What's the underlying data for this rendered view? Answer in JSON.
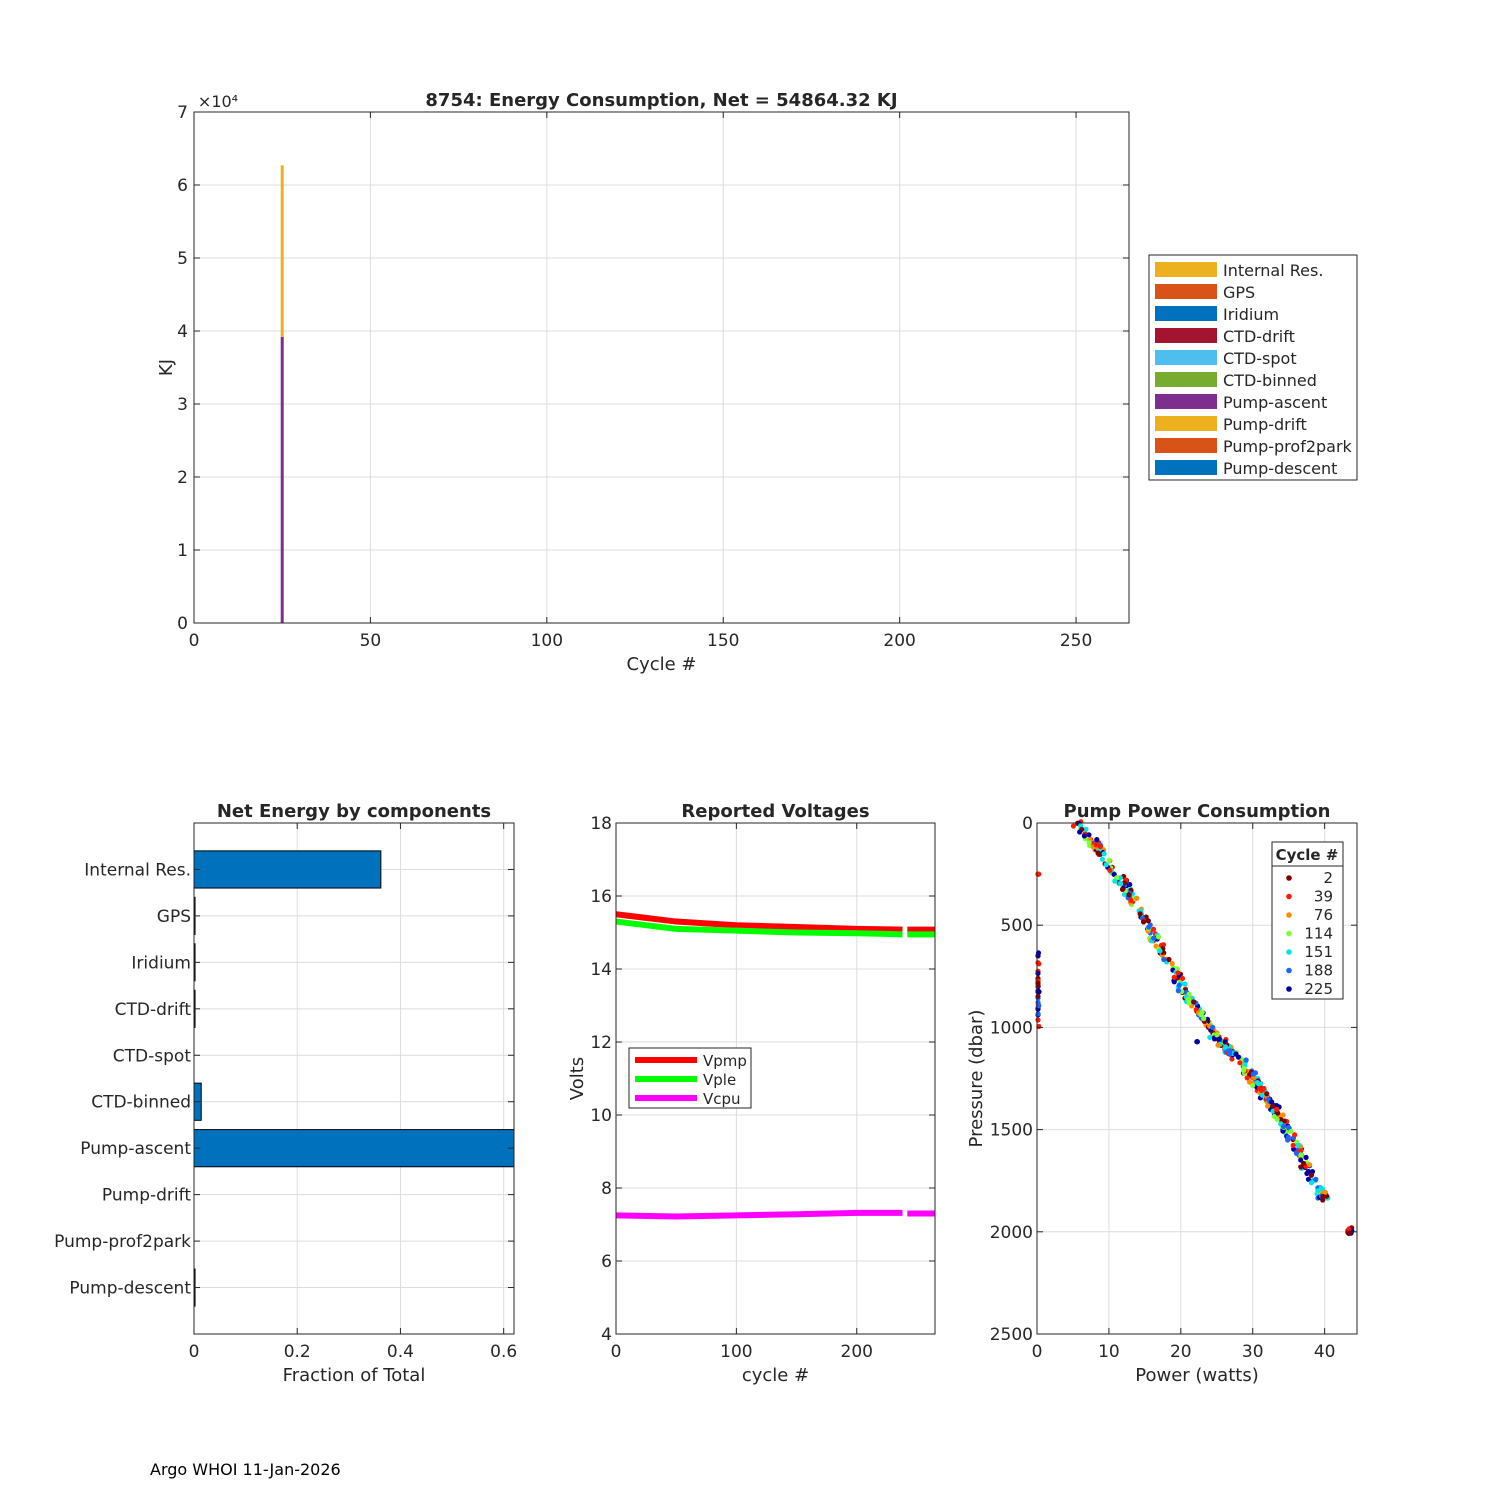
{
  "footer": "Argo WHOI 11-Jan-2026",
  "chart_data": [
    {
      "id": "energy",
      "type": "bar",
      "stacked": true,
      "title": "8754: Energy Consumption,  Net = 54864.32 KJ",
      "xlabel": "Cycle #",
      "ylabel": "KJ",
      "exponent_label": "×10⁴",
      "xlim": [
        0,
        265
      ],
      "ylim": [
        0,
        70000
      ],
      "xticks": [
        0,
        50,
        100,
        150,
        200,
        250
      ],
      "yticks": [
        0,
        10000,
        20000,
        30000,
        40000,
        50000,
        60000,
        70000
      ],
      "ytick_labels": [
        "0",
        "1",
        "2",
        "3",
        "4",
        "5",
        "6",
        "7"
      ],
      "grid": true,
      "legend_position": "outside-right",
      "legend": [
        {
          "name": "Internal Res.",
          "color": "#EDB120"
        },
        {
          "name": "GPS",
          "color": "#D95319"
        },
        {
          "name": "Iridium",
          "color": "#0072BD"
        },
        {
          "name": "CTD-drift",
          "color": "#A2142F"
        },
        {
          "name": "CTD-spot",
          "color": "#4DBEEE"
        },
        {
          "name": "CTD-binned",
          "color": "#77AC30"
        },
        {
          "name": "Pump-ascent",
          "color": "#7E2F8E"
        },
        {
          "name": "Pump-drift",
          "color": "#EDB120"
        },
        {
          "name": "Pump-prof2park",
          "color": "#D95319"
        },
        {
          "name": "Pump-descent",
          "color": "#0072BD"
        }
      ],
      "bars": [
        {
          "x": 25,
          "series": "Pump-ascent",
          "bottom": 0,
          "top": 39200,
          "color": "#7E2F8E"
        },
        {
          "x": 25,
          "series": "Internal Res.",
          "bottom": 39200,
          "top": 62700,
          "color": "#EDB120"
        }
      ]
    },
    {
      "id": "components",
      "type": "bar",
      "orientation": "horizontal",
      "title": "Net Energy by components",
      "xlabel": "Fraction of Total",
      "xlim": [
        0,
        0.62
      ],
      "xticks": [
        0,
        0.2,
        0.4,
        0.6
      ],
      "xtick_labels": [
        "0",
        "0.2",
        "0.4",
        "0.6"
      ],
      "grid": true,
      "bar_color": "#0072BD",
      "categories": [
        "Internal Res.",
        "GPS",
        "Iridium",
        "CTD-drift",
        "CTD-spot",
        "CTD-binned",
        "Pump-ascent",
        "Pump-drift",
        "Pump-prof2park",
        "Pump-descent"
      ],
      "values": [
        0.362,
        0.002,
        0.002,
        0.002,
        0.0,
        0.014,
        0.62,
        0.0,
        0.0,
        0.002
      ]
    },
    {
      "id": "voltages",
      "type": "line",
      "title": "Reported Voltages",
      "xlabel": "cycle #",
      "ylabel": "Volts",
      "xlim": [
        0,
        265
      ],
      "ylim": [
        4,
        18
      ],
      "xticks": [
        0,
        100,
        200
      ],
      "yticks": [
        4,
        6,
        8,
        10,
        12,
        14,
        16,
        18
      ],
      "grid": true,
      "legend_position": "left-middle",
      "series": [
        {
          "name": "Vpmp",
          "color": "#FF0000",
          "x": [
            0,
            50,
            100,
            150,
            200,
            238,
            242,
            265
          ],
          "values": [
            15.5,
            15.3,
            15.2,
            15.15,
            15.1,
            15.08,
            15.08,
            15.08
          ]
        },
        {
          "name": "Vple",
          "color": "#00FF00",
          "x": [
            0,
            50,
            100,
            150,
            200,
            238,
            242,
            265
          ],
          "values": [
            15.3,
            15.1,
            15.05,
            15.0,
            14.98,
            14.95,
            14.95,
            14.95
          ]
        },
        {
          "name": "Vcpu",
          "color": "#FF00FF",
          "x": [
            0,
            50,
            100,
            150,
            200,
            238,
            242,
            265
          ],
          "values": [
            7.25,
            7.22,
            7.25,
            7.28,
            7.32,
            7.32,
            7.3,
            7.3
          ]
        }
      ]
    },
    {
      "id": "pump",
      "type": "scatter",
      "title": "Pump Power Consumption",
      "xlabel": "Power (watts)",
      "ylabel": "Pressure (dbar)",
      "xlim": [
        0,
        44.5
      ],
      "ylim": [
        0,
        2500
      ],
      "y_reversed": true,
      "xticks": [
        0,
        10,
        20,
        30,
        40
      ],
      "yticks": [
        0,
        500,
        1000,
        1500,
        2000,
        2500
      ],
      "grid": true,
      "legend_title": "Cycle #",
      "legend_position": "top-right",
      "legend": [
        {
          "name": "2",
          "color": "#800000"
        },
        {
          "name": "39",
          "color": "#FF1A00"
        },
        {
          "name": "76",
          "color": "#FF8C00"
        },
        {
          "name": "114",
          "color": "#80FF33"
        },
        {
          "name": "151",
          "color": "#00E6E6"
        },
        {
          "name": "188",
          "color": "#1A66FF"
        },
        {
          "name": "225",
          "color": "#0000A0"
        }
      ],
      "trend": [
        [
          5.5,
          0
        ],
        [
          9,
          150
        ],
        [
          13,
          350
        ],
        [
          17,
          600
        ],
        [
          21,
          850
        ],
        [
          25,
          1050
        ],
        [
          28,
          1150
        ],
        [
          31,
          1300
        ],
        [
          34,
          1450
        ],
        [
          37,
          1650
        ],
        [
          40,
          1850
        ]
      ],
      "clusters": [
        {
          "x": 0,
          "y_from": 620,
          "y_to": 1000,
          "colors": [
            "#800000",
            "#FF1A00",
            "#1A66FF",
            "#0000A0"
          ]
        },
        {
          "x": 0,
          "y_from": 250,
          "y_to": 250,
          "colors": [
            "#FF1A00"
          ]
        },
        {
          "x": 43.5,
          "y_from": 1980,
          "y_to": 2010,
          "colors": [
            "#800000",
            "#FF1A00",
            "#0000A0"
          ]
        },
        {
          "x": 22.5,
          "y_from": 1070,
          "y_to": 1070,
          "colors": [
            "#0000A0"
          ]
        }
      ]
    }
  ]
}
